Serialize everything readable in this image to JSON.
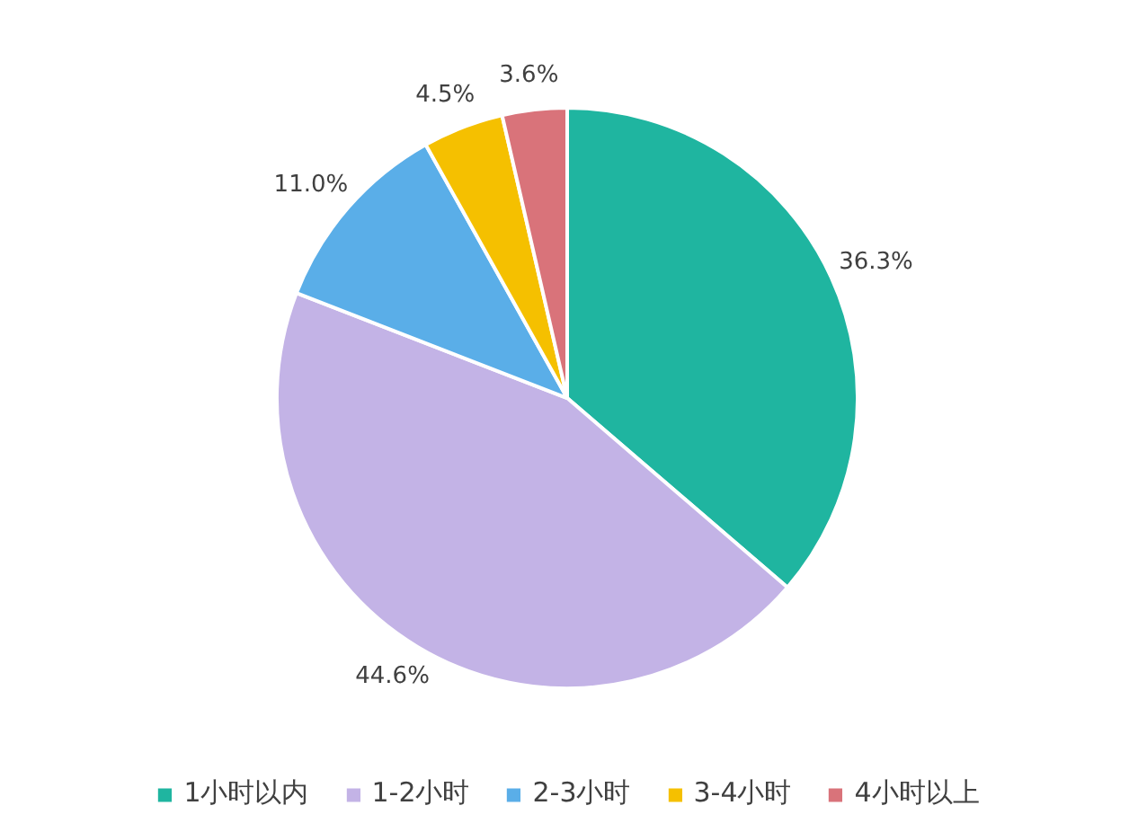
{
  "chart_data": {
    "type": "pie",
    "categories": [
      "1小时以内",
      "1-2小时",
      "2-3小时",
      "3-4小时",
      "4小时以上"
    ],
    "values": [
      36.3,
      44.6,
      11.0,
      4.5,
      3.6
    ],
    "colors": [
      "#1fb5a0",
      "#c3b3e6",
      "#5aaee8",
      "#f5c000",
      "#d9737a"
    ],
    "value_labels": [
      "36.3%",
      "44.6%",
      "11.0%",
      "4.5%",
      "3.6%"
    ],
    "legend": "bottom"
  }
}
